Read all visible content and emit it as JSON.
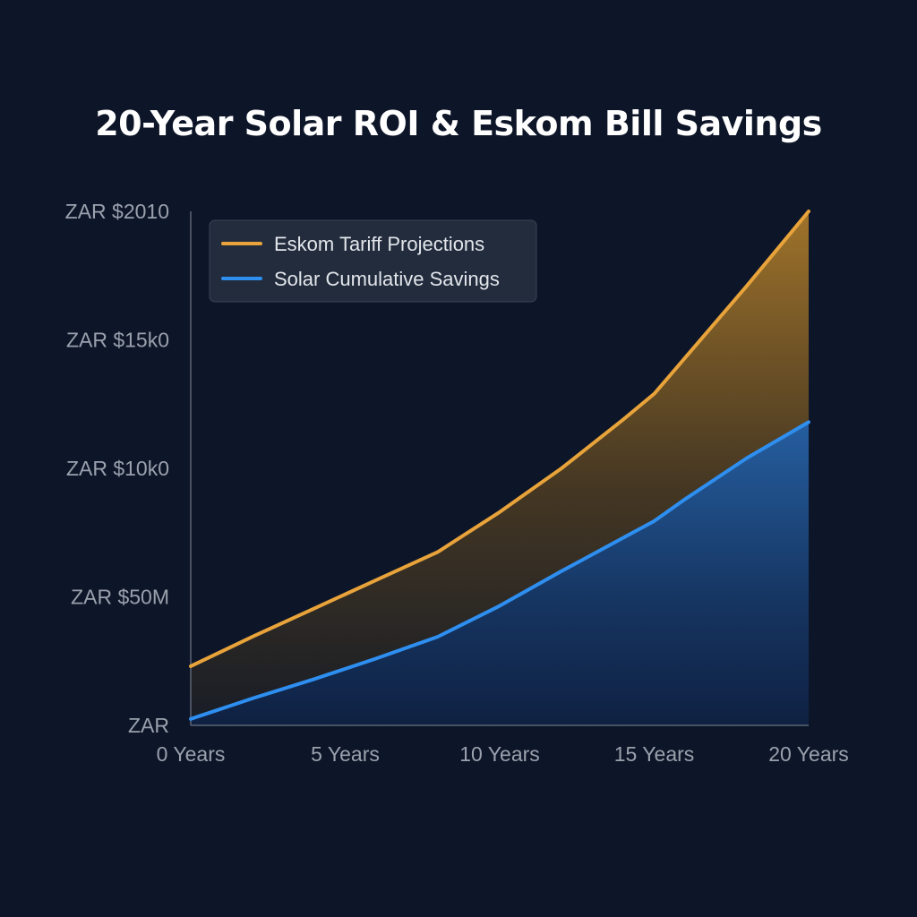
{
  "chart_data": {
    "type": "area",
    "title": "20-Year Solar ROI & Eskom Bill Savings",
    "xlabel": "",
    "ylabel": "",
    "categories": [
      "0 Years",
      "5 Years",
      "10 Years",
      "15 Years",
      "20 Years"
    ],
    "y_tick_labels": [
      "ZAR",
      "ZAR $50M",
      "ZAR $10k0",
      "ZAR $15k0",
      "ZAR $2010"
    ],
    "y_tick_values": [
      0,
      5000,
      10000,
      15000,
      20000
    ],
    "ylim": [
      0,
      20000
    ],
    "x": [
      0,
      2,
      4,
      5,
      6,
      8,
      10,
      12,
      14,
      15,
      16,
      18,
      20
    ],
    "series": [
      {
        "name": "Eskom Tariff Projections",
        "color": "#e8a33a",
        "values": [
          2300,
          3450,
          4550,
          5100,
          5650,
          6750,
          8300,
          10000,
          11900,
          12900,
          14300,
          17100,
          20000
        ]
      },
      {
        "name": "Solar Cumulative Savings",
        "color": "#2e8ff0",
        "values": [
          250,
          1050,
          1800,
          2200,
          2600,
          3450,
          4650,
          6000,
          7300,
          7950,
          8800,
          10400,
          11800
        ]
      }
    ],
    "legend_position": "top-left",
    "grid": false
  }
}
